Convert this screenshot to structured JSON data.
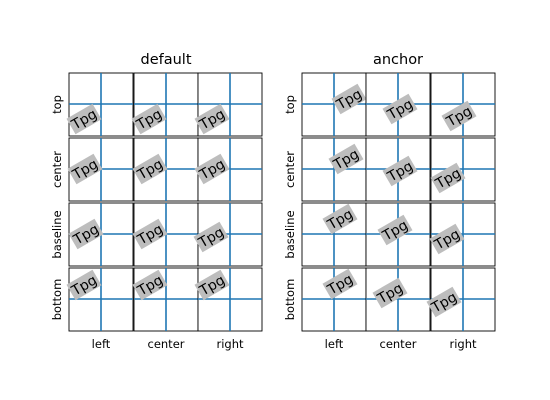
{
  "panels": [
    {
      "id": "default",
      "title": "default"
    },
    {
      "id": "anchor",
      "title": "anchor"
    }
  ],
  "rows": [
    "top",
    "center",
    "baseline",
    "bottom"
  ],
  "columns": [
    "left",
    "center",
    "right"
  ],
  "sample_text": "Tpg",
  "rotation_deg": 30,
  "colors": {
    "guide": "#1f77b4",
    "text_box": "#bdbdbd",
    "frame": "#000000"
  }
}
